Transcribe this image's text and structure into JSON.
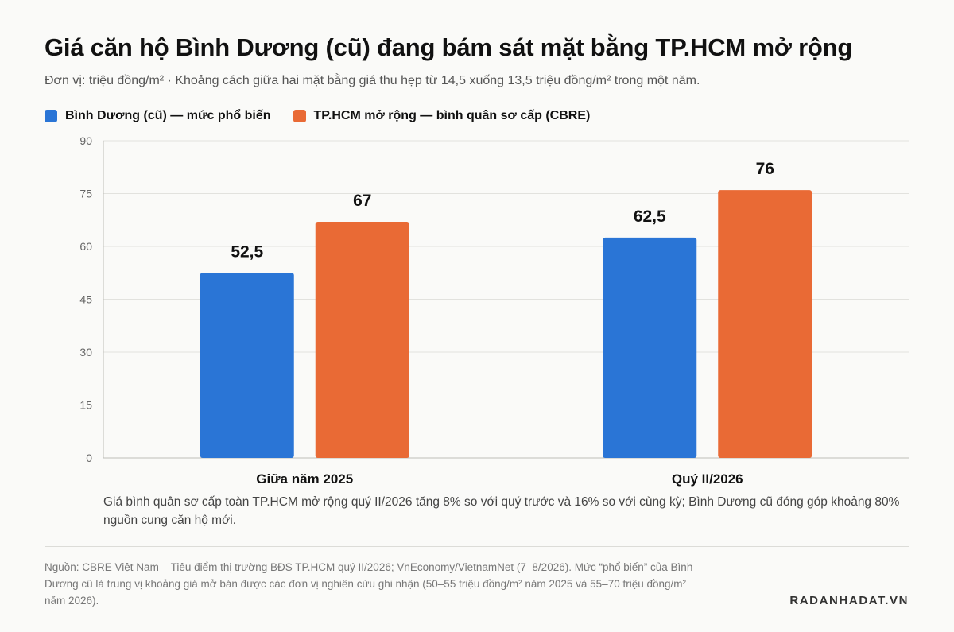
{
  "header": {
    "title": "Giá căn hộ Bình Dương (cũ) đang bám sát mặt bằng TP.HCM mở rộng",
    "subtitle": "Đơn vị: triệu đồng/m² · Khoảng cách giữa hai mặt bằng giá thu hẹp từ 14,5 xuống 13,5 triệu đồng/m² trong một năm."
  },
  "chart_data": {
    "type": "bar",
    "categories": [
      "Giữa năm 2025",
      "Quý II/2026"
    ],
    "series": [
      {
        "name": "Bình Dương (cũ) — mức phổ biến",
        "values": [
          52.5,
          62.5
        ],
        "labels": [
          "52,5",
          "62,5"
        ],
        "color": "#2a75d6"
      },
      {
        "name": "TP.HCM mở rộng — bình quân sơ cấp (CBRE)",
        "values": [
          67,
          76
        ],
        "labels": [
          "67",
          "76"
        ],
        "color": "#e96a35"
      }
    ],
    "ylim": [
      0,
      90
    ],
    "yticks": [
      0,
      15,
      30,
      45,
      60,
      75,
      90
    ],
    "grid": true,
    "legend": "top-left"
  },
  "note": "Giá bình quân sơ cấp toàn TP.HCM mở rộng quý II/2026 tăng 8% so với quý trước và 16% so với cùng kỳ; Bình Dương cũ đóng góp khoảng 80% nguồn cung căn hộ mới.",
  "source": "Nguồn: CBRE Việt Nam – Tiêu điểm thị trường BĐS TP.HCM quý II/2026; VnEconomy/VietnamNet (7–8/2026). Mức “phổ biến” của Bình Dương cũ là trung vị khoảng giá mở bán được các đơn vị nghiên cứu ghi nhận (50–55 triệu đồng/m² năm 2025 và 55–70 triệu đồng/m² năm 2026).",
  "brand": "RADANHADAT.VN"
}
